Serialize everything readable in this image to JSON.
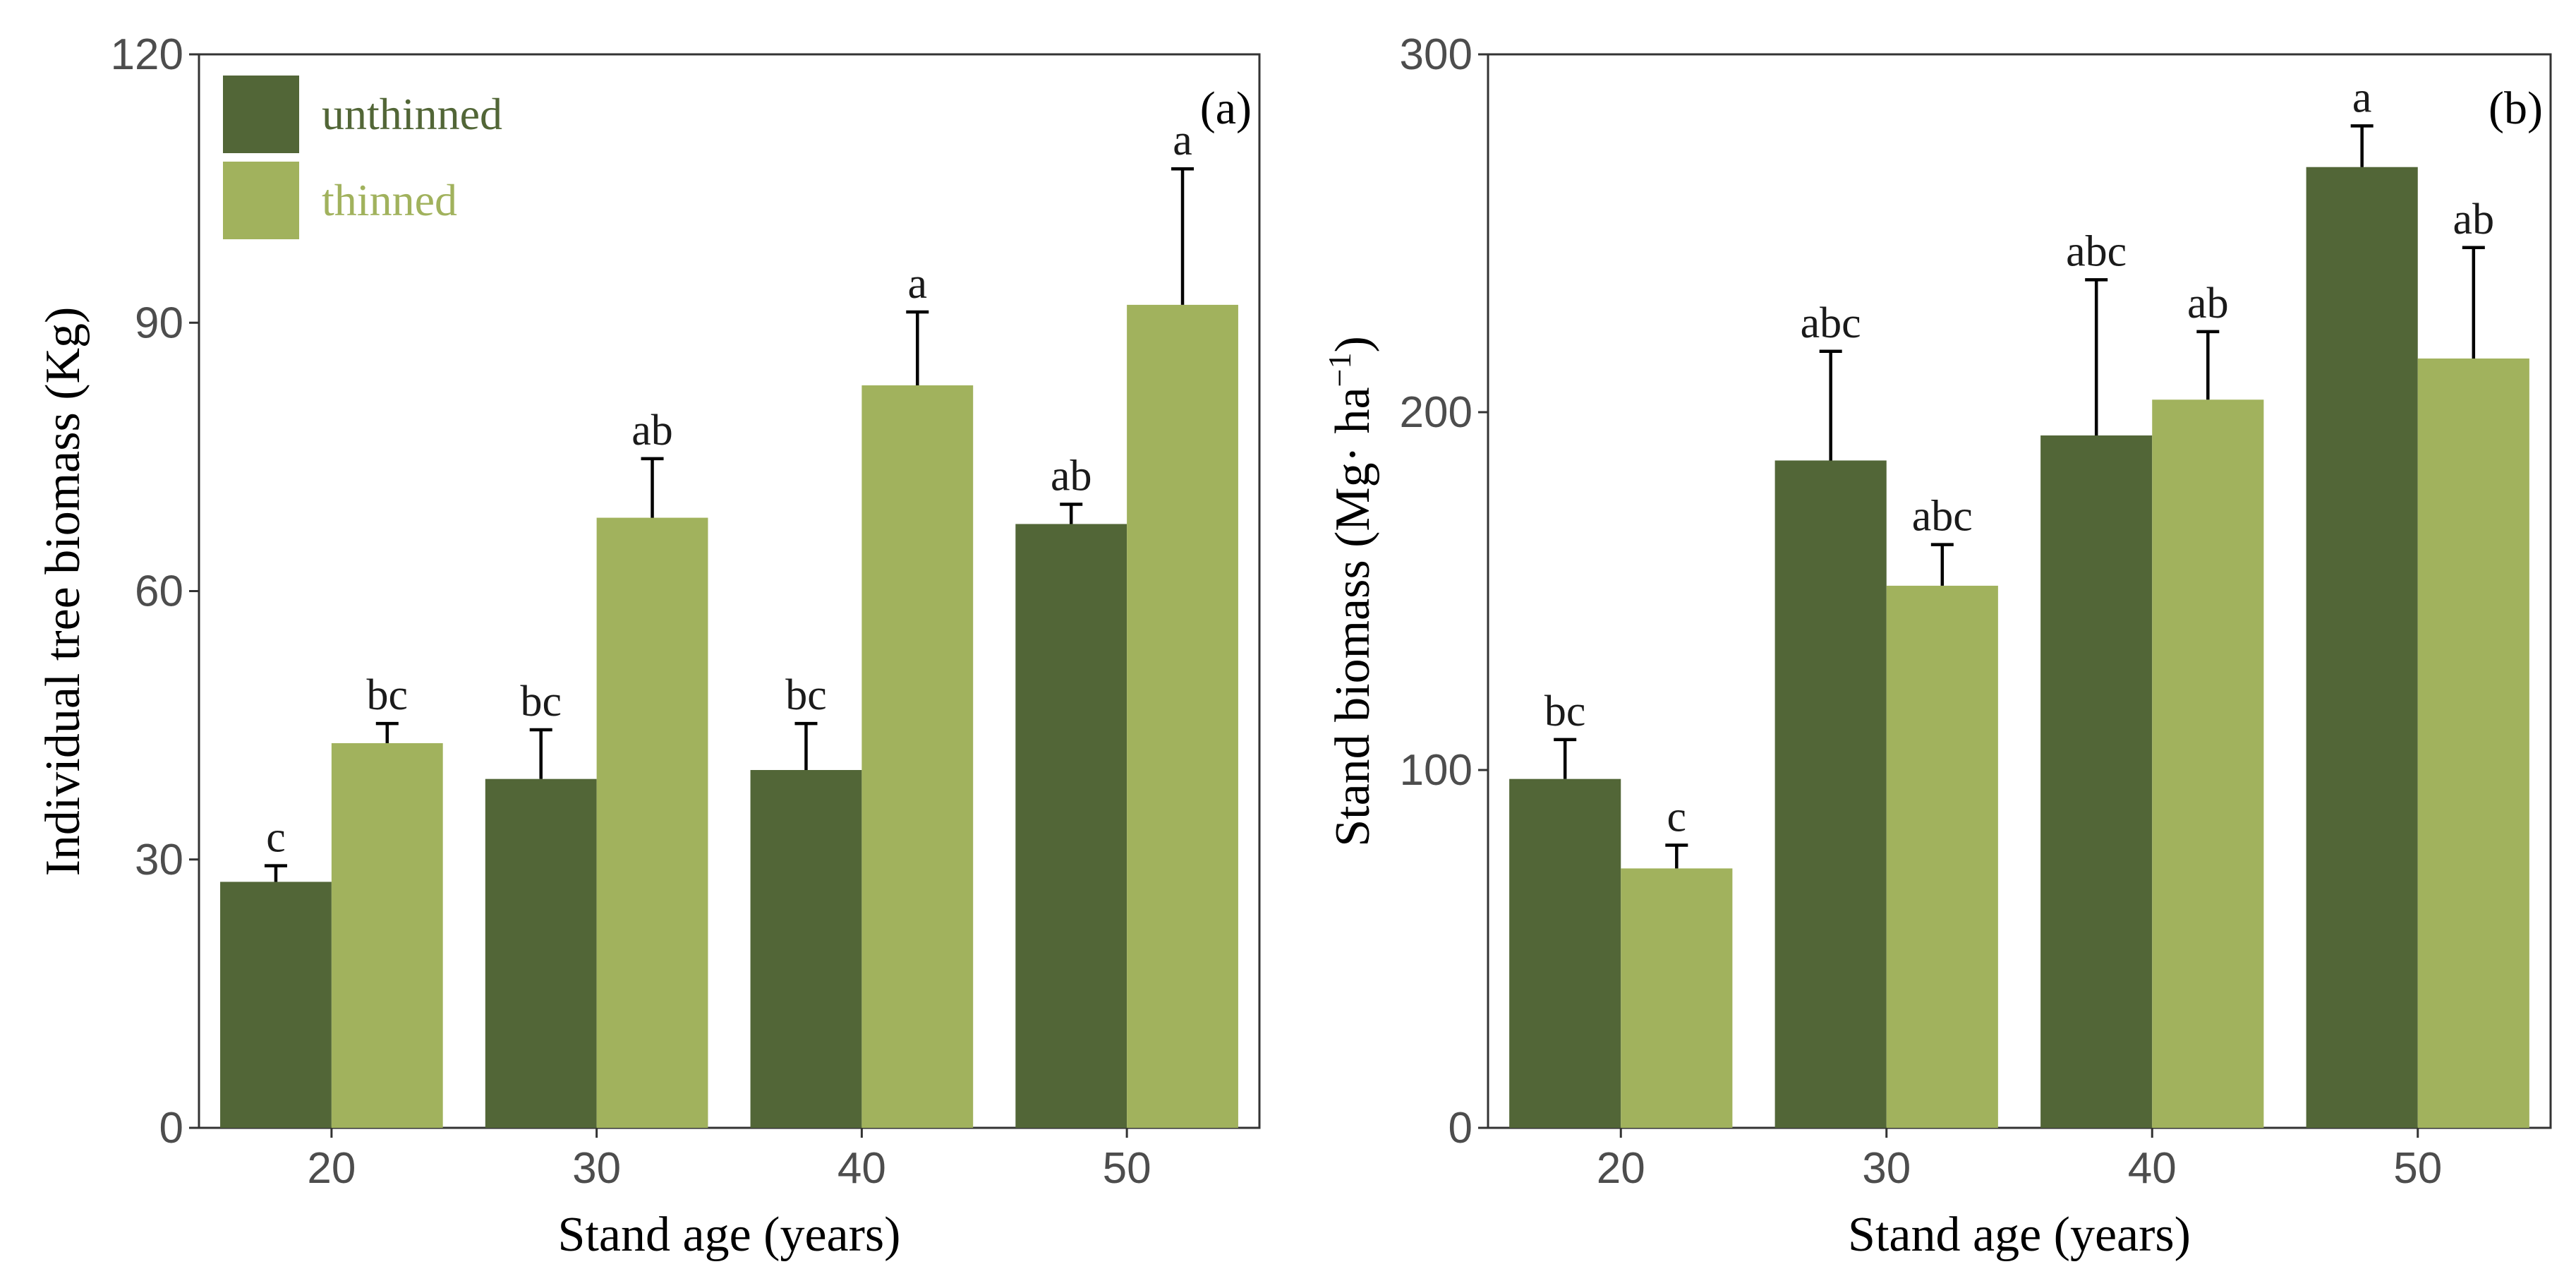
{
  "colors": {
    "unthinned": "#526637",
    "thinned": "#a1b25d",
    "axis": "#333333",
    "tick_text": "#4d4d4d",
    "letter_default": "#1a1a1a",
    "letter_muted": "#7a7a7a",
    "legend_unthinned_text": "#526637",
    "legend_thinned_text": "#a1b25d"
  },
  "legend": {
    "unthinned": "unthinned",
    "thinned": "thinned"
  },
  "chart_data": [
    {
      "id": "a",
      "type": "bar",
      "panel_label": "(a)",
      "title": "",
      "xlabel": "Stand age (years)",
      "ylabel": "Individual tree biomass (Kg)",
      "ylabel_unit_superscript": "",
      "ylim": [
        0,
        120
      ],
      "yticks": [
        0,
        30,
        60,
        90,
        120
      ],
      "categories": [
        "20",
        "30",
        "40",
        "50"
      ],
      "series": [
        {
          "name": "unthinned",
          "values": [
            27.5,
            39,
            40,
            67.5
          ],
          "errors": [
            1.8,
            5.5,
            5.2,
            2.2
          ],
          "letters": [
            "c",
            "bc",
            "bc",
            "ab"
          ]
        },
        {
          "name": "thinned",
          "values": [
            43,
            68.2,
            83,
            92
          ],
          "errors": [
            2.2,
            6.6,
            8.2,
            15.2
          ],
          "letters": [
            "bc",
            "ab",
            "a",
            "a"
          ]
        }
      ],
      "letter_muted_points": [
        [
          1,
          0
        ]
      ],
      "legend_position": "top-left"
    },
    {
      "id": "b",
      "type": "bar",
      "panel_label": "(b)",
      "title": "",
      "xlabel": "Stand age (years)",
      "ylabel": "Stand biomass (Mg· ha",
      "ylabel_unit_superscript": "−1",
      "ylabel_close": ")",
      "ylim": [
        0,
        300
      ],
      "yticks": [
        0,
        100,
        200,
        300
      ],
      "categories": [
        "20",
        "30",
        "40",
        "50"
      ],
      "series": [
        {
          "name": "unthinned",
          "values": [
            97.5,
            186.5,
            193.5,
            268.5
          ],
          "errors": [
            11,
            30.5,
            43.5,
            11.5
          ],
          "letters": [
            "bc",
            "abc",
            "abc",
            "a"
          ]
        },
        {
          "name": "thinned",
          "values": [
            72.5,
            151.5,
            203.5,
            215
          ],
          "errors": [
            6.5,
            11.5,
            19,
            31
          ],
          "letters": [
            "c",
            "abc",
            "ab",
            "ab"
          ]
        }
      ],
      "letter_muted_points": [],
      "legend_position": "none"
    }
  ]
}
